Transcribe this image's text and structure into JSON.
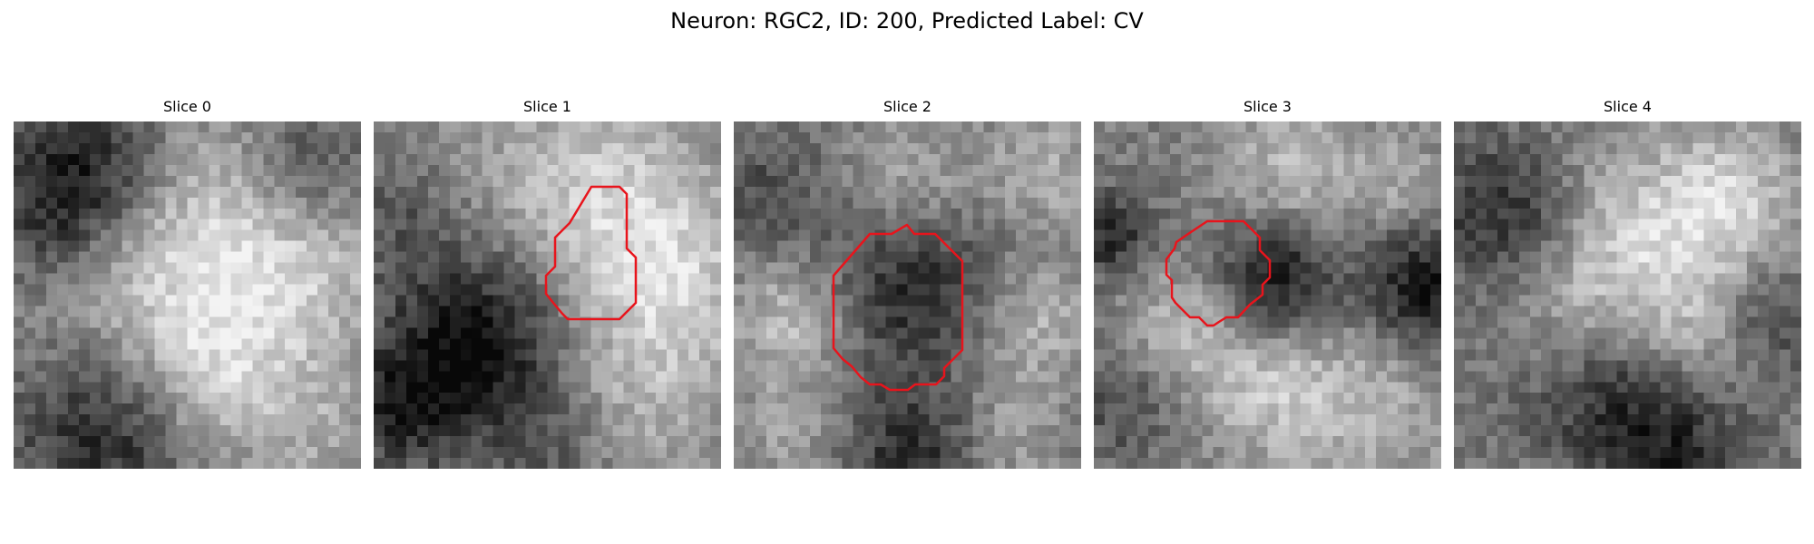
{
  "figure": {
    "title": "Neuron: RGC2, ID: 200, Predicted Label: CV"
  },
  "panels": [
    {
      "title": "Slice 0",
      "has_contour": false
    },
    {
      "title": "Slice 1",
      "has_contour": true
    },
    {
      "title": "Slice 2",
      "has_contour": true
    },
    {
      "title": "Slice 3",
      "has_contour": true
    },
    {
      "title": "Slice 4",
      "has_contour": false
    }
  ],
  "colors": {
    "contour": "#e8141c",
    "background": "#ffffff"
  },
  "image": {
    "grid_size": 32,
    "colormap": "grayscale"
  }
}
